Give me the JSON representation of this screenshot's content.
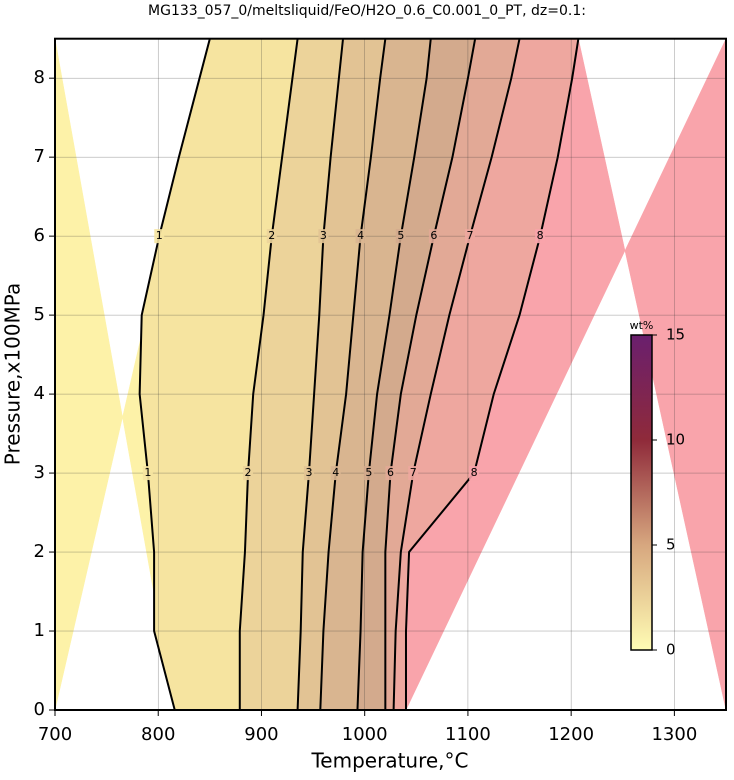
{
  "chart_data": {
    "type": "contour",
    "title": "MG133_057_0/meltsliquid/FeO/H2O_0.6_C0.001_0_PT, dz=0.1:",
    "x_label": "Temperature,°C",
    "y_label": "Pressure,x100MPa",
    "xlim": [
      700,
      1350
    ],
    "xticks": [
      700,
      800,
      900,
      1000,
      1100,
      1200,
      1300
    ],
    "ylim": [
      0,
      8.5
    ],
    "yticks": [
      0,
      1,
      2,
      3,
      4,
      5,
      6,
      7,
      8
    ],
    "grid": true,
    "band_colors": [
      "#fdf2a8",
      "#f6e4a0",
      "#ecd39a",
      "#e2c394",
      "#d9b590",
      "#d3aa8d",
      "#e2a996",
      "#eea79f",
      "#f9a4ab"
    ],
    "contours": [
      {
        "level": 1,
        "y": [
          0,
          1,
          2,
          3,
          4,
          5,
          6,
          7,
          8,
          8.5
        ],
        "x": [
          816,
          796,
          796,
          790,
          782,
          784,
          801,
          820,
          840,
          850
        ]
      },
      {
        "level": 2,
        "y": [
          0,
          1,
          2,
          3,
          4,
          5,
          6,
          7,
          8,
          8.5
        ],
        "x": [
          879,
          879,
          884,
          887,
          892,
          902,
          910,
          920,
          930,
          935
        ]
      },
      {
        "level": 3,
        "y": [
          0,
          1,
          2,
          3,
          4,
          5,
          6,
          7,
          8,
          8.5
        ],
        "x": [
          935,
          938,
          940,
          946,
          951,
          956,
          960,
          967,
          975,
          979
        ]
      },
      {
        "level": 4,
        "y": [
          0,
          1,
          2,
          3,
          4,
          5,
          6,
          7,
          8,
          8.5
        ],
        "x": [
          957,
          960,
          965,
          972,
          982,
          989,
          996,
          1006,
          1015,
          1020
        ]
      },
      {
        "level": 5,
        "y": [
          0,
          1,
          2,
          3,
          4,
          5,
          6,
          7,
          8,
          8.5
        ],
        "x": [
          993,
          996,
          998,
          1004,
          1012,
          1024,
          1035,
          1048,
          1060,
          1064
        ]
      },
      {
        "level": 6,
        "y": [
          0,
          1,
          2,
          3,
          4,
          5,
          6,
          7,
          8,
          8.5
        ],
        "x": [
          1020,
          1020,
          1020,
          1025,
          1035,
          1050,
          1067,
          1085,
          1100,
          1107
        ]
      },
      {
        "level": 7,
        "y": [
          0,
          1,
          2,
          3,
          4,
          5,
          6,
          7,
          8,
          8.5
        ],
        "x": [
          1028,
          1030,
          1035,
          1047,
          1064,
          1082,
          1102,
          1123,
          1142,
          1150
        ]
      },
      {
        "level": 8,
        "y": [
          0,
          1,
          2,
          3,
          4,
          5,
          6,
          7,
          8,
          8.5
        ],
        "x": [
          1040,
          1040,
          1043,
          1106,
          1125,
          1150,
          1170,
          1187,
          1201,
          1207
        ]
      }
    ],
    "colorbar": {
      "label": "wt%",
      "lim": [
        0,
        15
      ],
      "ticks": [
        0,
        5,
        10,
        15
      ],
      "colors": [
        "#fffcb4",
        "#d7a77f",
        "#8f2a3a",
        "#6a1f6e"
      ]
    }
  }
}
